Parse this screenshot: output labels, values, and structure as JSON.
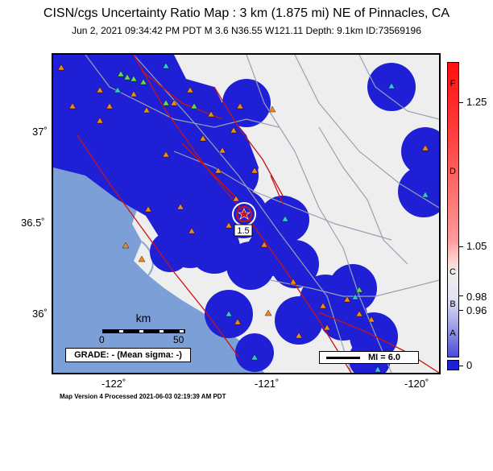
{
  "title": "CISN/cgs Uncertainty Ratio Map : 3 km (1.875 mi) NE of Pinnacles, CA",
  "subtitle": "Jun  2, 2021 09:34:42 PM PDT    M 3.6    N36.55 W121.11    Depth: 9.1km    ID:73569196",
  "map": {
    "lat_labels": [
      "37˚",
      "36.5˚",
      "36˚"
    ],
    "lon_labels": [
      "-122˚",
      "-121˚",
      "-120˚"
    ],
    "epicenter_label": "1.5",
    "colors": {
      "ocean": "#7b9fd6",
      "land": "#eeeeee",
      "blue": "#1f1fd6",
      "faults": "#c81414",
      "roads": "#9aa0b4",
      "stations_orange": "#f08a1c",
      "stations_cyan": "#2ec6d8",
      "stations_green": "#66d466"
    }
  },
  "scale": {
    "title": "km",
    "min": "0",
    "max": "50"
  },
  "grade": "GRADE: - (Mean sigma: -)",
  "legend": {
    "mi": "MI = 6.0"
  },
  "colorbar": {
    "letters": [
      "F",
      "D",
      "C",
      "B",
      "A"
    ],
    "values": [
      "1.25",
      "1.05",
      "0.98",
      "0.96",
      "0"
    ]
  },
  "footer": "Map Version 4 Processed 2021-06-03 02:19:39 AM PDT"
}
